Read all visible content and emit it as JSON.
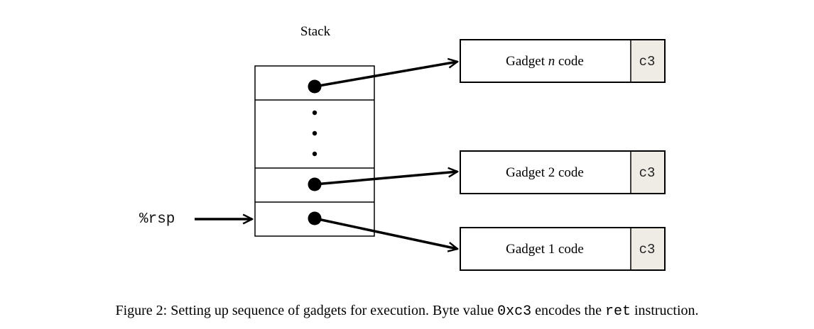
{
  "diagram": {
    "stack_title": "Stack",
    "rsp_label": "%rsp",
    "gadgets": [
      {
        "prefix": "Gadget ",
        "name": "n",
        "suffix": " code",
        "byte": "c3"
      },
      {
        "prefix": "Gadget ",
        "name": "2",
        "suffix": " code",
        "byte": "c3"
      },
      {
        "prefix": "Gadget ",
        "name": "1",
        "suffix": " code",
        "byte": "c3"
      }
    ]
  },
  "caption": {
    "part1": "Figure 2: Setting up sequence of gadgets for execution. Byte value ",
    "code1": "0xc3",
    "part2": " encodes the ",
    "code2": "ret",
    "part3": " instruction."
  },
  "colors": {
    "byte_cell_fill": "#efece6",
    "stroke": "#000000"
  }
}
